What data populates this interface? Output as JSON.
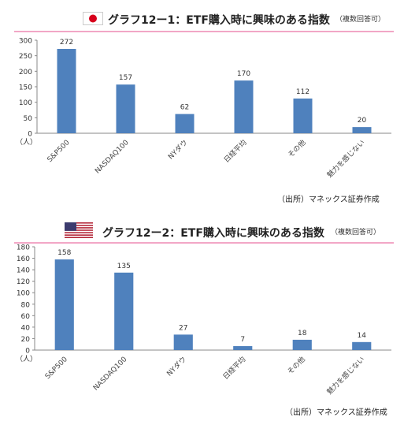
{
  "charts": [
    {
      "title": "グラフ12ー1：ETF購入時に興味のある指数",
      "note": "（複数回答可）",
      "source": "（出所）マネックス証券作成",
      "unit_label": "（人）",
      "flag": "japan-flag-icon",
      "accent_rule_color": "#f2a7c6",
      "bar_color": "#4f81bd",
      "chart_data": {
        "type": "bar",
        "categories": [
          "S&P500",
          "NASDAQ100",
          "NYダウ",
          "日経平均",
          "その他",
          "魅力を感じない"
        ],
        "values": [
          272,
          157,
          62,
          170,
          112,
          20
        ],
        "ylim": [
          0,
          300
        ],
        "yticks": [
          0,
          50,
          100,
          150,
          200,
          250,
          300
        ],
        "grid": false,
        "data_labels": true
      }
    },
    {
      "title": "グラフ12ー2：ETF購入時に興味のある指数",
      "note": "（複数回答可）",
      "source": "（出所）マネックス証券作成",
      "unit_label": "（人）",
      "flag": "us-flag-icon",
      "accent_rule_color": "#f2a7c6",
      "bar_color": "#4f81bd",
      "chart_data": {
        "type": "bar",
        "categories": [
          "S&P500",
          "NASDAQ100",
          "NYダウ",
          "日経平均",
          "その他",
          "魅力を感じない"
        ],
        "values": [
          158,
          135,
          27,
          7,
          18,
          14
        ],
        "ylim": [
          0,
          180
        ],
        "yticks": [
          0,
          20,
          40,
          60,
          80,
          100,
          120,
          140,
          160,
          180
        ],
        "grid": false,
        "data_labels": true
      }
    }
  ]
}
